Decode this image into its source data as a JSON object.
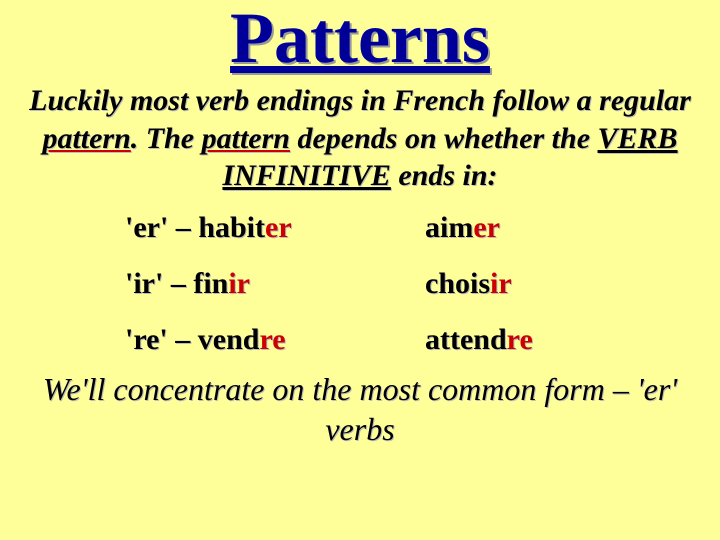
{
  "title": "Patterns",
  "intro": {
    "part1": "Luckily most verb endings in French follow a regular ",
    "pattern1": "pattern",
    "part2": ". The ",
    "pattern2": "pattern",
    "part3": " depends on whether the ",
    "verb_inf": "VERB INFINITIVE",
    "part4": "  ends in:"
  },
  "rows": [
    {
      "left_prefix": "'er' – ",
      "left_stem": "habit",
      "left_end": "er",
      "right_stem": "aim",
      "right_end": "er"
    },
    {
      "left_prefix": "'ir' – ",
      "left_stem": "fin",
      "left_end": "ir",
      "right_stem": "chois",
      "right_end": "ir"
    },
    {
      "left_prefix": "'re' – ",
      "left_stem": "vend",
      "left_end": "re",
      "right_stem": "attend",
      "right_end": "re"
    }
  ],
  "footer": {
    "part1": "We'll concentrate on the most common form – ",
    "part2": "'er'",
    "part3": " verbs"
  },
  "colors": {
    "background": "#ffff99",
    "title": "#000099",
    "ending": "#cc0000",
    "text": "#000000"
  }
}
